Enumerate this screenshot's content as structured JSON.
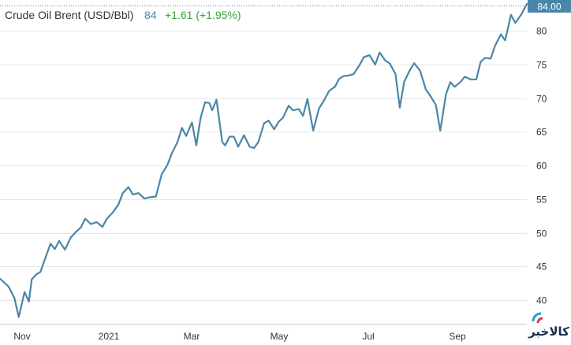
{
  "chart_data": {
    "type": "line",
    "title": "Crude Oil Brent (USD/Bbl)",
    "last_value": "84",
    "change": "+1.61 (+1.95%)",
    "price_tag": "84.00",
    "x_tick_labels": [
      "Nov",
      "2021",
      "Mar",
      "May",
      "Jul",
      "Sep"
    ],
    "y_ticks": [
      40,
      45,
      50,
      55,
      60,
      65,
      70,
      75,
      80
    ],
    "ylim": [
      36.5,
      84.6
    ],
    "xlim": [
      "2020-10-15",
      "2021-10-15"
    ],
    "grid": true,
    "color": "#4a86a8",
    "series": [
      {
        "x": [
          "2020-10-15",
          "2020-10-21",
          "2020-10-25",
          "2020-10-28",
          "2020-11-01",
          "2020-11-04",
          "2020-11-06",
          "2020-11-09",
          "2020-11-12",
          "2020-11-15",
          "2020-11-19",
          "2020-11-22",
          "2020-11-25",
          "2020-11-29",
          "2020-12-03",
          "2020-12-06",
          "2020-12-10",
          "2020-12-13",
          "2020-12-17",
          "2020-12-21",
          "2020-12-25",
          "2020-12-28",
          "2021-01-01",
          "2021-01-05",
          "2021-01-08",
          "2021-01-12",
          "2021-01-15",
          "2021-01-19",
          "2021-01-23",
          "2021-01-27",
          "2021-01-31",
          "2021-02-04",
          "2021-02-08",
          "2021-02-11",
          "2021-02-15",
          "2021-02-18",
          "2021-02-21",
          "2021-02-25",
          "2021-02-28",
          "2021-03-03",
          "2021-03-06",
          "2021-03-09",
          "2021-03-11",
          "2021-03-14",
          "2021-03-18",
          "2021-03-20",
          "2021-03-23",
          "2021-03-26",
          "2021-03-29",
          "2021-04-02",
          "2021-04-06",
          "2021-04-09",
          "2021-04-12",
          "2021-04-16",
          "2021-04-19",
          "2021-04-23",
          "2021-04-26",
          "2021-04-29",
          "2021-05-03",
          "2021-05-06",
          "2021-05-10",
          "2021-05-13",
          "2021-05-16",
          "2021-05-20",
          "2021-05-24",
          "2021-05-27",
          "2021-05-31",
          "2021-06-04",
          "2021-06-07",
          "2021-06-10",
          "2021-06-14",
          "2021-06-17",
          "2021-06-21",
          "2021-06-24",
          "2021-06-28",
          "2021-07-02",
          "2021-07-05",
          "2021-07-09",
          "2021-07-12",
          "2021-07-16",
          "2021-07-19",
          "2021-07-22",
          "2021-07-26",
          "2021-07-29",
          "2021-08-02",
          "2021-08-06",
          "2021-08-09",
          "2021-08-13",
          "2021-08-16",
          "2021-08-20",
          "2021-08-23",
          "2021-08-26",
          "2021-08-30",
          "2021-09-02",
          "2021-09-06",
          "2021-09-10",
          "2021-09-13",
          "2021-09-16",
          "2021-09-20",
          "2021-09-23",
          "2021-09-27",
          "2021-09-30",
          "2021-10-04",
          "2021-10-07",
          "2021-10-11",
          "2021-10-15"
        ],
        "y": [
          43.2,
          42.0,
          40.3,
          37.5,
          41.2,
          39.8,
          43.1,
          43.8,
          44.2,
          46.0,
          48.4,
          47.6,
          48.8,
          47.5,
          49.3,
          50.0,
          50.8,
          52.1,
          51.3,
          51.6,
          50.9,
          52.1,
          53.0,
          54.2,
          55.9,
          56.8,
          55.7,
          55.9,
          55.1,
          55.3,
          55.4,
          58.7,
          60.1,
          61.8,
          63.5,
          65.6,
          64.4,
          66.4,
          63.0,
          67.1,
          69.4,
          69.3,
          68.2,
          69.8,
          63.5,
          63.0,
          64.3,
          64.3,
          62.8,
          64.5,
          62.8,
          62.6,
          63.5,
          66.3,
          66.7,
          65.4,
          66.5,
          67.1,
          68.9,
          68.2,
          68.4,
          67.4,
          69.9,
          65.2,
          68.5,
          69.5,
          71.1,
          71.7,
          72.9,
          73.3,
          73.4,
          73.6,
          74.9,
          76.1,
          76.4,
          75.0,
          76.8,
          75.6,
          75.2,
          73.6,
          68.6,
          72.4,
          74.2,
          75.2,
          74.1,
          71.3,
          70.4,
          69.0,
          65.2,
          70.6,
          72.4,
          71.7,
          72.4,
          73.2,
          72.8,
          72.8,
          75.4,
          76.0,
          75.9,
          77.8,
          79.5,
          78.6,
          82.4,
          81.2,
          82.4,
          84.0
        ]
      }
    ]
  },
  "watermark": {
    "text": "کالاخبر"
  }
}
